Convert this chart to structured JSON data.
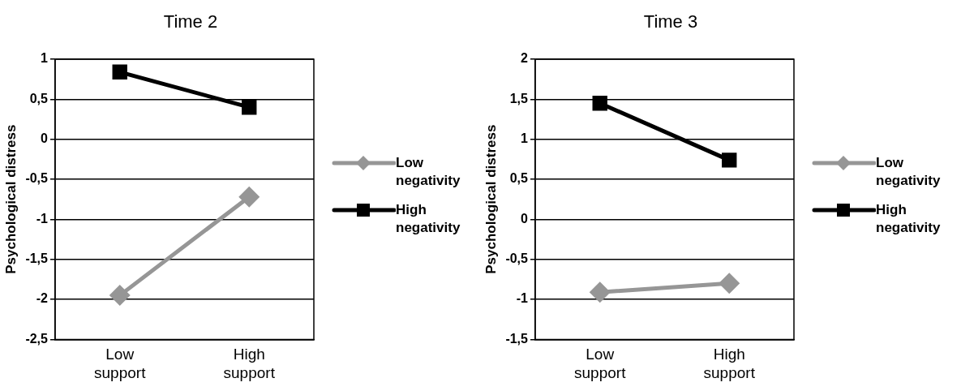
{
  "chart_data": [
    {
      "type": "line",
      "title": "Time 2",
      "ylabel": "Psychological distress",
      "categories": [
        "Low support",
        "High support"
      ],
      "series": [
        {
          "name": "Low negativity",
          "color": "#969696",
          "values": [
            -1.95,
            -0.72
          ],
          "marker": "diamond"
        },
        {
          "name": "High negativity",
          "color": "#000000",
          "values": [
            0.84,
            0.4
          ],
          "marker": "square"
        }
      ],
      "ylim": [
        -2.5,
        1
      ],
      "yticks": [
        {
          "value": -2.5,
          "label": "-2,5"
        },
        -2,
        {
          "value": -1.5,
          "label": "-1,5"
        },
        -1,
        {
          "value": -0.5,
          "label": "-0,5"
        },
        0,
        {
          "value": 0.5,
          "label": "0,5"
        },
        1
      ],
      "grid": "y",
      "legend": "right",
      "line_style": "solid"
    },
    {
      "type": "line",
      "title": "Time 3",
      "ylabel": "Psychological distress",
      "categories": [
        "Low support",
        "High support"
      ],
      "series": [
        {
          "name": "Low negativity",
          "color": "#969696",
          "values": [
            -0.91,
            -0.8
          ],
          "marker": "diamond"
        },
        {
          "name": "High negativity",
          "color": "#000000",
          "values": [
            1.45,
            0.74
          ],
          "marker": "square"
        }
      ],
      "ylim": [
        -1.5,
        2
      ],
      "yticks": [
        {
          "value": -1.5,
          "label": "-1,5"
        },
        -1,
        {
          "value": -0.5,
          "label": "-0,5"
        },
        0,
        {
          "value": 0.5,
          "label": "0,5"
        },
        1,
        {
          "value": 1.5,
          "label": "1,5"
        },
        2
      ],
      "grid": "y",
      "legend": "right",
      "line_style": "solid"
    }
  ]
}
